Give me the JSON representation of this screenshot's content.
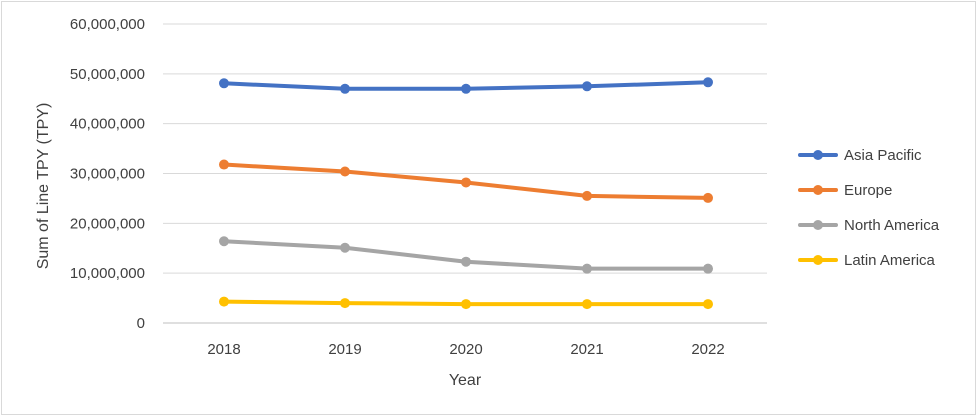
{
  "chart_data": {
    "type": "line",
    "title": "",
    "xlabel": "Year",
    "ylabel": "Sum of Line TPY (TPY)",
    "categories": [
      "2018",
      "2019",
      "2020",
      "2021",
      "2022"
    ],
    "ylim": [
      0,
      60000000
    ],
    "yticks": [
      0,
      10000000,
      20000000,
      30000000,
      40000000,
      50000000,
      60000000
    ],
    "ytick_labels": [
      "0",
      "10,000,000",
      "20,000,000",
      "30,000,000",
      "40,000,000",
      "50,000,000",
      "60,000,000"
    ],
    "grid": true,
    "legend_position": "right",
    "series": [
      {
        "name": "Asia Pacific",
        "color": "#4472c4",
        "values": [
          48100000,
          47000000,
          47000000,
          47500000,
          48300000
        ]
      },
      {
        "name": "Europe",
        "color": "#ed7d31",
        "values": [
          31800000,
          30400000,
          28200000,
          25500000,
          25100000
        ]
      },
      {
        "name": "North America",
        "color": "#a5a5a5",
        "values": [
          16400000,
          15100000,
          12300000,
          10900000,
          10900000
        ]
      },
      {
        "name": "Latin America",
        "color": "#ffc000",
        "values": [
          4300000,
          4000000,
          3800000,
          3800000,
          3800000
        ]
      }
    ]
  }
}
